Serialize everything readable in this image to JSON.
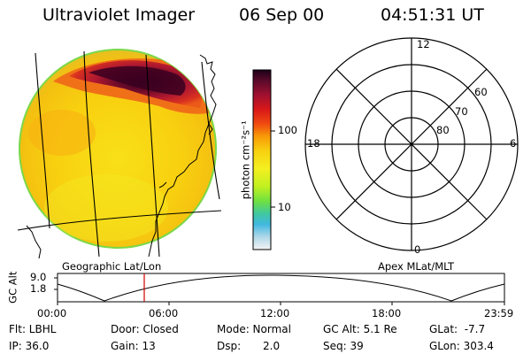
{
  "header": {
    "instrument": "Ultraviolet Imager",
    "date": "06 Sep 00",
    "time": "04:51:31 UT"
  },
  "image_panel": {
    "caption": "Geographic Lat/Lon"
  },
  "colorbar": {
    "unit_label": "photon cm⁻²s⁻¹",
    "tick_labels": [
      "100",
      "10"
    ],
    "scale": "log",
    "colors_top_to_bottom": [
      "#1a0018",
      "#5a0a2a",
      "#a01030",
      "#d81818",
      "#f04a10",
      "#f89a08",
      "#f8d010",
      "#f4f020",
      "#c0f020",
      "#70e040",
      "#40c8a0",
      "#40b8e0",
      "#b0d8e8",
      "#f4f4f4"
    ]
  },
  "polar_plot": {
    "caption": "Apex MLat/MLT",
    "mlt_labels": {
      "top": "12",
      "left": "18",
      "right": "6",
      "bottom": "0"
    },
    "mlat_labels": [
      "60",
      "70",
      "80"
    ]
  },
  "altitude_strip": {
    "ylabel": "GC Alt",
    "y_ticks": [
      "9.0",
      "1.8"
    ],
    "x_ticks": [
      "00:00",
      "06:00",
      "12:00",
      "18:00",
      "23:59"
    ],
    "marker_time": "04:51",
    "marker_color": "#d00000"
  },
  "status": {
    "filter": "Flt: LBHL",
    "door": "Door: Closed",
    "mode": "Mode: Normal",
    "gc_alt": "GC Alt: 5.1 Re",
    "glat": "GLat:  -7.7",
    "ip": "IP: 36.0",
    "gain": "Gain: 13",
    "dsp_label": "Dsp:",
    "dsp_value": "2.0",
    "seq": "Seq: 39",
    "glon": "GLon: 303.4"
  }
}
